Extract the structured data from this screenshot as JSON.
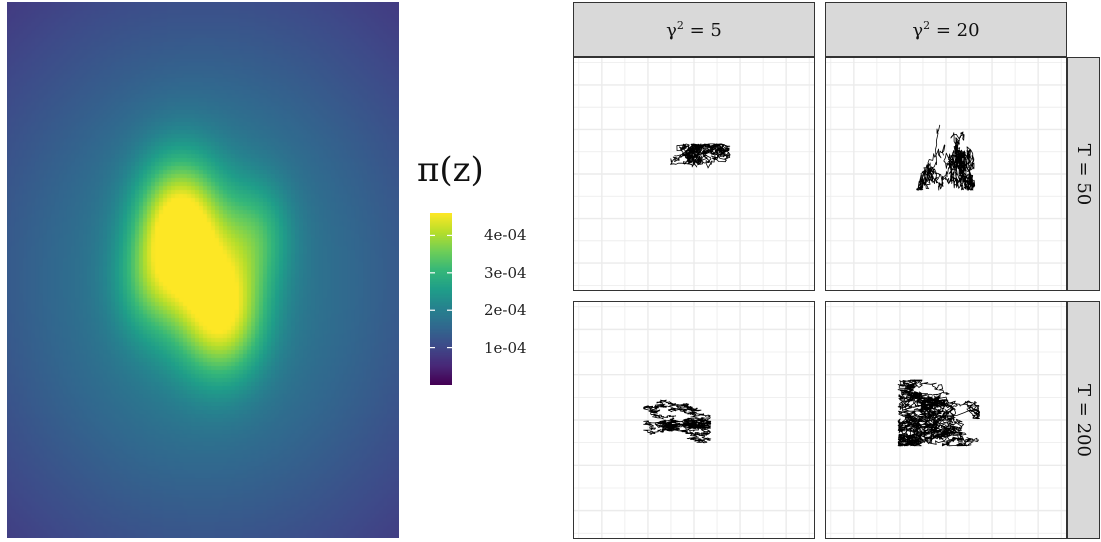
{
  "chart_data": [
    {
      "type": "heatmap",
      "title": "",
      "xlabel": "",
      "ylabel": "",
      "grid": false,
      "colormap": "viridis",
      "colormap_stops": [
        "#440154",
        "#482878",
        "#3e4a89",
        "#31688e",
        "#26828e",
        "#1f9e89",
        "#35b779",
        "#6ece58",
        "#b5de2b",
        "#fde725"
      ],
      "legend": {
        "title": "π(z)",
        "placement": "right",
        "range": [
          0,
          0.00046
        ],
        "ticks": [
          0.0001,
          0.0002,
          0.0003,
          0.0004
        ],
        "tick_labels": [
          "1e-04",
          "2e-04",
          "3e-04",
          "4e-04"
        ]
      },
      "value_range": [
        0,
        0.00046
      ],
      "background_value": 3e-05,
      "components": [
        {
          "cx": 0.5,
          "cy": 0.52,
          "sx": 0.5,
          "sy": 0.44,
          "amp": 0.000165
        },
        {
          "cx": 0.44,
          "cy": 0.42,
          "sx": 0.075,
          "sy": 0.09,
          "amp": 0.00027
        },
        {
          "cx": 0.55,
          "cy": 0.58,
          "sx": 0.075,
          "sy": 0.085,
          "amp": 0.00023
        },
        {
          "cx": 0.64,
          "cy": 0.43,
          "sx": 0.06,
          "sy": 0.07,
          "amp": 0.0001
        },
        {
          "cx": 0.36,
          "cy": 0.53,
          "sx": 0.06,
          "sy": 0.07,
          "amp": 8e-05
        },
        {
          "cx": 0.48,
          "cy": 0.5,
          "sx": 0.12,
          "sy": 0.14,
          "amp": 8e-05
        }
      ]
    },
    {
      "type": "line",
      "title": "",
      "xlabel": "",
      "ylabel": "",
      "grid": true,
      "facet_columns": [
        "γ² = 5",
        "γ² = 20"
      ],
      "facet_rows": [
        "T = 50",
        "T = 200"
      ],
      "series_color": "#000000",
      "panels": [
        {
          "row": 0,
          "col": 0,
          "steps": 900,
          "seed": 11,
          "center": [
            0.5,
            0.44
          ],
          "step_size": 0.012,
          "axis": [
            1,
            0.8
          ],
          "spread": [
            0.15,
            0.07
          ],
          "pull": 0.1
        },
        {
          "row": 0,
          "col": 1,
          "steps": 1200,
          "seed": 23,
          "center": [
            0.49,
            0.42
          ],
          "step_size": 0.018,
          "axis": [
            0.35,
            1
          ],
          "spread": [
            0.13,
            0.15
          ],
          "pull": 0.08
        },
        {
          "row": 1,
          "col": 0,
          "steps": 1700,
          "seed": 37,
          "center": [
            0.43,
            0.52
          ],
          "step_size": 0.012,
          "axis": [
            1,
            0.3
          ],
          "spread": [
            0.14,
            0.12
          ],
          "pull": 0.07
        },
        {
          "row": 1,
          "col": 1,
          "steps": 2600,
          "seed": 53,
          "center": [
            0.47,
            0.47
          ],
          "step_size": 0.016,
          "axis": [
            1,
            0.6
          ],
          "spread": [
            0.17,
            0.14
          ],
          "pull": 0.06
        }
      ]
    }
  ]
}
